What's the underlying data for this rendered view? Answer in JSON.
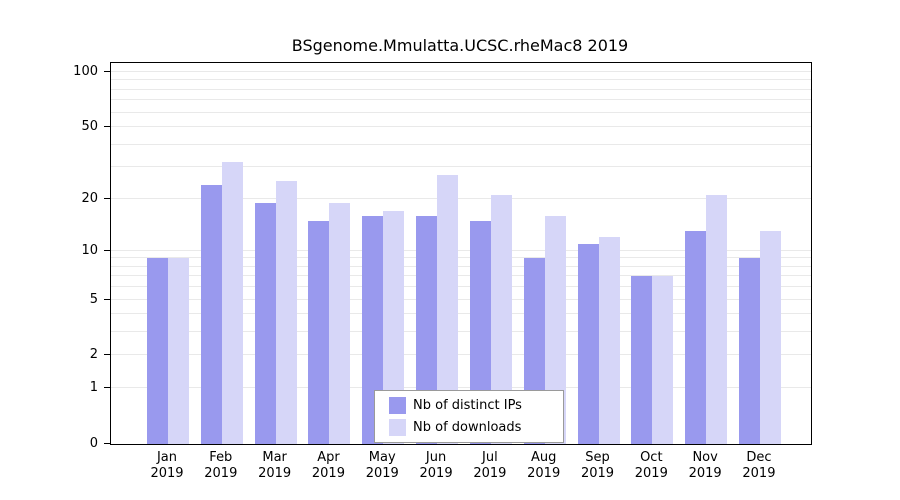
{
  "figure": {
    "title": "BSgenome.Mmulatta.UCSC.rheMac8 2019"
  },
  "chart_data": {
    "type": "bar",
    "title": "BSgenome.Mmulatta.UCSC.rheMac8 2019",
    "categories": [
      "Jan",
      "Feb",
      "Mar",
      "Apr",
      "May",
      "Jun",
      "Jul",
      "Aug",
      "Sep",
      "Oct",
      "Nov",
      "Dec"
    ],
    "x_tick_year": "2019",
    "series": [
      {
        "name": "Nb of distinct IPs",
        "color": "#9999ee",
        "values": [
          9,
          24,
          19,
          15,
          16,
          16,
          15,
          9,
          11,
          7,
          13,
          9
        ]
      },
      {
        "name": "Nb of downloads",
        "color": "#d6d6f8",
        "values": [
          9,
          32,
          25,
          19,
          17,
          27,
          21,
          16,
          12,
          7,
          21,
          13
        ]
      }
    ],
    "yticks": [
      100,
      50,
      20,
      10,
      5,
      2,
      1,
      0
    ],
    "gridlines": [
      1,
      2,
      3,
      4,
      5,
      6,
      7,
      8,
      9,
      10,
      20,
      30,
      40,
      50,
      60,
      70,
      80,
      90,
      100
    ],
    "scale": "log1p",
    "ylim": [
      0,
      100
    ],
    "grid": "horizontal",
    "legend_position": "bottom-center"
  }
}
